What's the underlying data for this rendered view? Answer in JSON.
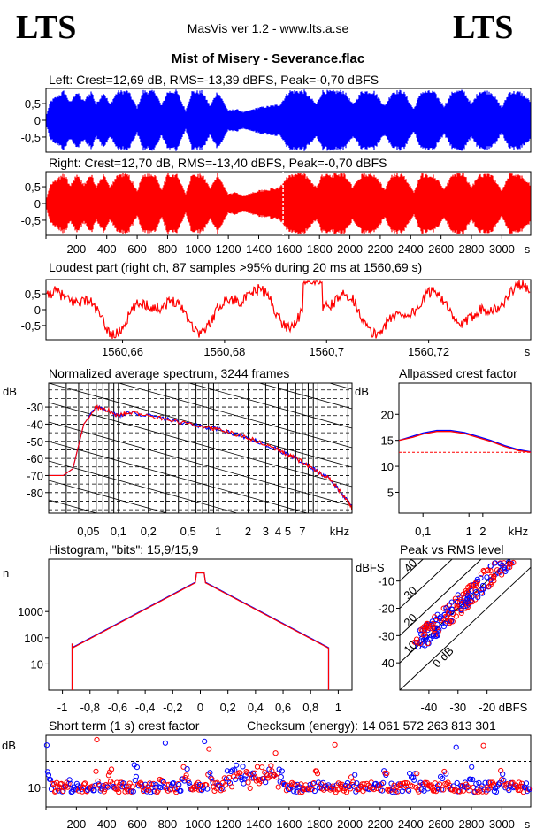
{
  "header": {
    "logo_left": "LTS",
    "logo_right": "LTS",
    "app_title": "MasVis ver 1.2 - www.lts.a.se",
    "track_title": "Mist of Misery - Severance.flac"
  },
  "chart_data": [
    {
      "type": "line",
      "id": "waveform-left",
      "title": "Left: Crest=12,69 dB, RMS=-13,39 dBFS, Peak=-0,70 dBFS",
      "color": "#0000ff",
      "ylim": [
        -0.95,
        0.95
      ],
      "yticks": [
        "0.5",
        "0",
        "-0.5"
      ],
      "yticks_display": [
        "0,5",
        "0",
        "-0,5"
      ],
      "xlim": [
        0,
        3190
      ],
      "envelope": [
        [
          0,
          0.1
        ],
        [
          30,
          0.6
        ],
        [
          120,
          0.92
        ],
        [
          160,
          0.55
        ],
        [
          200,
          0.9
        ],
        [
          250,
          0.6
        ],
        [
          300,
          0.92
        ],
        [
          330,
          0.5
        ],
        [
          380,
          0.9
        ],
        [
          420,
          0.5
        ],
        [
          470,
          0.9
        ],
        [
          540,
          0.92
        ],
        [
          600,
          0.4
        ],
        [
          640,
          0.92
        ],
        [
          720,
          0.9
        ],
        [
          760,
          0.45
        ],
        [
          800,
          0.9
        ],
        [
          860,
          0.92
        ],
        [
          920,
          0.3
        ],
        [
          960,
          0.9
        ],
        [
          1030,
          0.9
        ],
        [
          1080,
          0.45
        ],
        [
          1130,
          0.92
        ],
        [
          1200,
          0.3
        ],
        [
          1250,
          0.35
        ],
        [
          1300,
          0.25
        ],
        [
          1400,
          0.4
        ],
        [
          1480,
          0.45
        ],
        [
          1540,
          0.5
        ],
        [
          1600,
          0.92
        ],
        [
          1700,
          0.92
        ],
        [
          1780,
          0.5
        ],
        [
          1820,
          0.92
        ],
        [
          1880,
          0.9
        ],
        [
          1960,
          0.92
        ],
        [
          2020,
          0.5
        ],
        [
          2080,
          0.92
        ],
        [
          2160,
          0.9
        ],
        [
          2230,
          0.45
        ],
        [
          2280,
          0.9
        ],
        [
          2350,
          0.92
        ],
        [
          2420,
          0.35
        ],
        [
          2470,
          0.9
        ],
        [
          2550,
          0.9
        ],
        [
          2620,
          0.45
        ],
        [
          2680,
          0.92
        ],
        [
          2750,
          0.92
        ],
        [
          2800,
          0.5
        ],
        [
          2850,
          0.92
        ],
        [
          2930,
          0.9
        ],
        [
          3000,
          0.4
        ],
        [
          3050,
          0.9
        ],
        [
          3120,
          0.88
        ],
        [
          3190,
          0.6
        ]
      ]
    },
    {
      "type": "line",
      "id": "waveform-right",
      "title": "Right: Crest=12,70 dB, RMS=-13,40 dBFS, Peak=-0,70 dBFS",
      "color": "#ff0000",
      "ylim": [
        -0.95,
        0.95
      ],
      "yticks": [
        "0.5",
        "0",
        "-0.5"
      ],
      "yticks_display": [
        "0,5",
        "0",
        "-0,5"
      ],
      "xlim": [
        0,
        3190
      ],
      "xticks": [
        200,
        400,
        600,
        800,
        1000,
        1200,
        1400,
        1600,
        1800,
        2000,
        2200,
        2400,
        2600,
        2800,
        3000
      ],
      "xunit": "s",
      "marker_x": 1560.69
    },
    {
      "type": "line",
      "id": "loudest-part",
      "title": "Loudest part (right ch, 87 samples >95% during 20 ms at 1560,69 s)",
      "color": "#ff0000",
      "ylim": [
        -0.95,
        0.95
      ],
      "yticks_display": [
        "0,5",
        "0",
        "-0,5"
      ],
      "xlim": [
        1560.645,
        1560.74
      ],
      "xticks": [
        1560.66,
        1560.68,
        1560.7,
        1560.72
      ],
      "xticks_display": [
        "1560,66",
        "1560,68",
        "1560,7",
        "1560,72"
      ],
      "xunit": "s"
    },
    {
      "type": "line",
      "id": "avg-spectrum",
      "title": "Normalized average spectrum, 3244 frames",
      "ylabel": "dB",
      "xlabel": "kHz",
      "scale": "log",
      "xlim": [
        0.02,
        22
      ],
      "ylim": [
        -92,
        -16
      ],
      "yticks": [
        -30,
        -40,
        -50,
        -60,
        -70,
        -80
      ],
      "xticks": [
        0.05,
        0.1,
        0.2,
        0.5,
        1,
        2,
        3,
        4,
        5,
        7
      ],
      "xticks_display": [
        "0,05",
        "0,1",
        "0,2",
        "0,5",
        "1",
        "2",
        "3",
        "4",
        "5",
        "7"
      ],
      "series": [
        {
          "color": "#0000ff",
          "x": [
            0.02,
            0.028,
            0.035,
            0.045,
            0.06,
            0.08,
            0.1,
            0.13,
            0.2,
            0.3,
            0.5,
            0.8,
            1,
            1.5,
            2,
            3,
            4,
            5,
            6,
            8,
            10,
            13,
            16,
            20,
            22
          ],
          "y": [
            -70,
            -70,
            -66,
            -40,
            -30,
            -32,
            -35,
            -33,
            -35,
            -37,
            -40,
            -42,
            -43,
            -46,
            -48,
            -52,
            -55,
            -58,
            -60,
            -64,
            -68,
            -72,
            -78,
            -85,
            -88
          ]
        },
        {
          "color": "#ff0000",
          "x": [
            0.02,
            0.028,
            0.035,
            0.045,
            0.06,
            0.08,
            0.1,
            0.13,
            0.2,
            0.3,
            0.5,
            0.8,
            1,
            1.5,
            2,
            3,
            4,
            5,
            6,
            8,
            10,
            13,
            16,
            20,
            22
          ],
          "y": [
            -70,
            -70,
            -66,
            -40,
            -30,
            -32,
            -35,
            -33,
            -35,
            -37,
            -40,
            -42,
            -43,
            -46,
            -48,
            -52,
            -55,
            -58,
            -60,
            -64,
            -68,
            -72,
            -78,
            -85,
            -89
          ]
        }
      ]
    },
    {
      "type": "line",
      "id": "allpassed-crest",
      "title": "Allpassed crest factor",
      "ylabel": "dB",
      "xlabel": "kHz",
      "scale": "log",
      "xlim": [
        0.03,
        22
      ],
      "ylim": [
        1,
        26
      ],
      "yticks": [
        20,
        15,
        10,
        5
      ],
      "xticks": [
        0.1,
        1,
        2
      ],
      "xticks_display": [
        "0,1",
        "1",
        "2"
      ],
      "reference_y": 12.7,
      "series": [
        {
          "color": "#0000ff",
          "x": [
            0.03,
            0.06,
            0.1,
            0.2,
            0.4,
            0.8,
            1.5,
            3,
            6,
            12,
            22
          ],
          "y": [
            15,
            15.8,
            16.4,
            16.9,
            16.9,
            16.5,
            15.8,
            15,
            14,
            13.2,
            12.8
          ]
        },
        {
          "color": "#ff0000",
          "x": [
            0.03,
            0.06,
            0.1,
            0.2,
            0.4,
            0.8,
            1.5,
            3,
            6,
            12,
            22
          ],
          "y": [
            15,
            15.6,
            16.2,
            16.7,
            16.7,
            16.3,
            15.6,
            14.8,
            13.8,
            13,
            12.7
          ]
        }
      ]
    },
    {
      "type": "line",
      "id": "histogram",
      "title": "Histogram, \"bits\": 15,9/15,9",
      "ylabel": "n",
      "scale": "log",
      "xlim": [
        -1.1,
        1.1
      ],
      "ylim": [
        1,
        100000
      ],
      "yticks": [
        1000,
        100,
        10
      ],
      "xticks": [
        -1,
        -0.8,
        -0.6,
        -0.4,
        -0.2,
        0,
        0.2,
        0.4,
        0.6,
        0.8,
        1
      ],
      "xticks_display": [
        "-1",
        "-0,8",
        "-0,6",
        "-0,4",
        "-0,2",
        "0",
        "0,2",
        "0,4",
        "0,6",
        "0,8",
        "1"
      ],
      "edge": 0.93
    },
    {
      "type": "scatter",
      "id": "peak-vs-rms",
      "title": "Peak vs RMS level",
      "ylabel": "dBFS",
      "xlabel": "dBFS",
      "xlim": [
        -50,
        -5
      ],
      "ylim": [
        -50,
        -2
      ],
      "xticks": [
        -40,
        -30,
        -20
      ],
      "yticks": [
        -10,
        -20,
        -30,
        -40
      ],
      "diagonal_labels": [
        "40",
        "30",
        "20",
        "10",
        "0 dB"
      ]
    },
    {
      "type": "scatter",
      "id": "short-term-crest",
      "title": "Short term (1 s) crest factor",
      "ylabel": "dB",
      "xlim": [
        0,
        3190
      ],
      "ylim": [
        4,
        26
      ],
      "yticks": [
        10
      ],
      "reference_y": 18,
      "xticks": [
        200,
        400,
        600,
        800,
        1000,
        1200,
        1400,
        1600,
        1800,
        2000,
        2200,
        2400,
        2600,
        2800,
        3000
      ],
      "xunit": "s"
    }
  ],
  "checksum": {
    "label": "Checksum (energy):",
    "value": "14 061 572 263 813 301"
  }
}
